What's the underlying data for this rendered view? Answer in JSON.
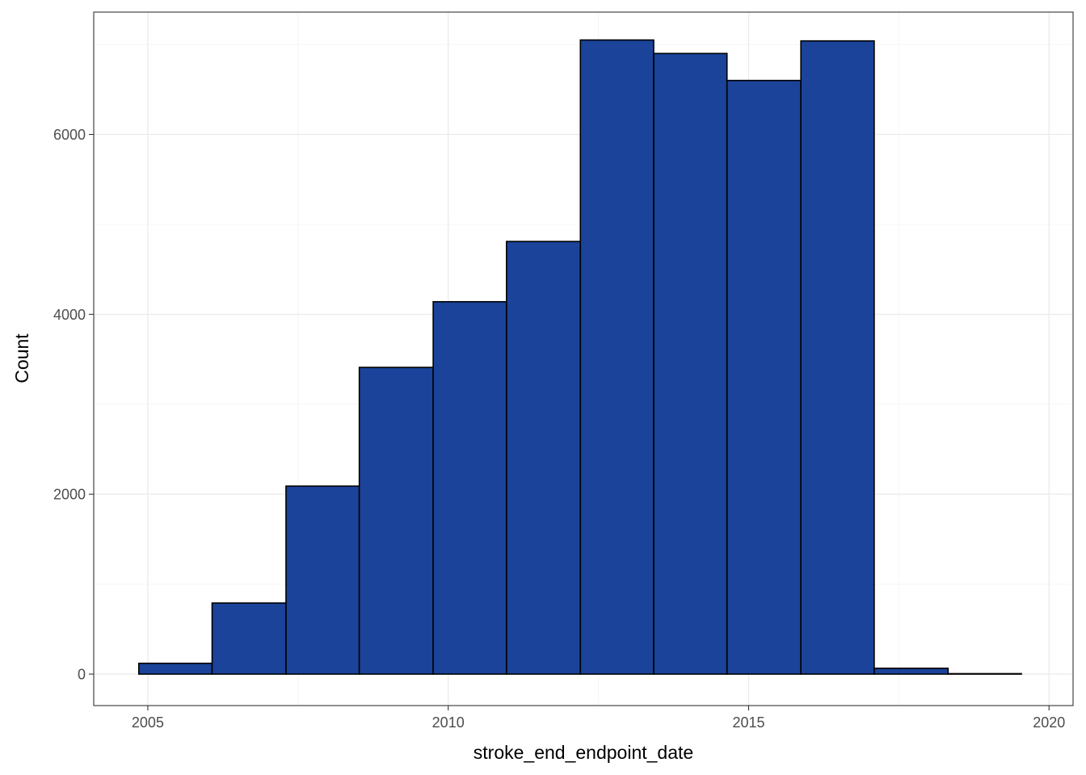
{
  "chart_data": {
    "type": "bar",
    "title": "",
    "xlabel": "stroke_end_endpoint_date",
    "ylabel": "Count",
    "x_ticks": [
      "2005",
      "2010",
      "2015",
      "2020"
    ],
    "y_ticks": [
      "0",
      "2000",
      "4000",
      "6000"
    ],
    "xlim": [
      2004.1,
      2020.4
    ],
    "ylim": [
      -350,
      7360
    ],
    "bins": [
      {
        "start": 2004.85,
        "end": 2006.07,
        "count": 120
      },
      {
        "start": 2006.07,
        "end": 2007.3,
        "count": 790
      },
      {
        "start": 2007.3,
        "end": 2008.52,
        "count": 2090
      },
      {
        "start": 2008.52,
        "end": 2009.75,
        "count": 3410
      },
      {
        "start": 2009.75,
        "end": 2010.97,
        "count": 4140
      },
      {
        "start": 2010.97,
        "end": 2012.2,
        "count": 4810
      },
      {
        "start": 2012.2,
        "end": 2013.42,
        "count": 7050
      },
      {
        "start": 2013.42,
        "end": 2014.64,
        "count": 6900
      },
      {
        "start": 2014.64,
        "end": 2015.87,
        "count": 6600
      },
      {
        "start": 2015.87,
        "end": 2017.09,
        "count": 7040
      },
      {
        "start": 2017.09,
        "end": 2018.32,
        "count": 65
      },
      {
        "start": 2018.32,
        "end": 2019.54,
        "count": 5
      }
    ],
    "grid": true,
    "legend": "none",
    "colors": {
      "bar_fill": "#1A4399",
      "bar_stroke": "#000000",
      "grid_major": "#EBEBEB",
      "grid_minor": "#F5F5F5",
      "panel_border": "#333333",
      "tick_text": "#4D4D4D",
      "axis_title_text": "#000000"
    }
  }
}
